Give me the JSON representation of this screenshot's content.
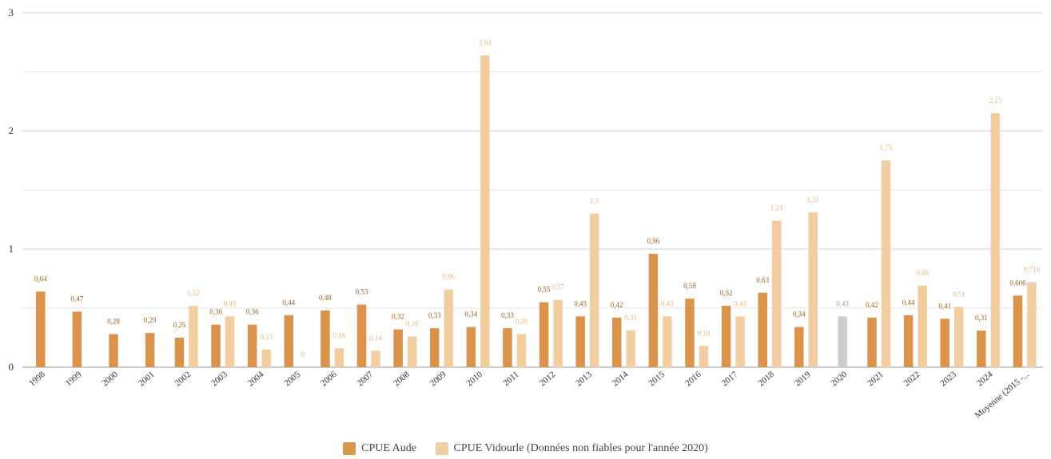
{
  "chart_data": {
    "type": "bar",
    "categories": [
      "1998",
      "1999",
      "2000",
      "2001",
      "2002",
      "2003",
      "2004",
      "2005",
      "2006",
      "2007",
      "2008",
      "2009",
      "2010",
      "2011",
      "2012",
      "2013",
      "2014",
      "2015",
      "2016",
      "2017",
      "2018",
      "2019",
      "2020",
      "2021",
      "2022",
      "2023",
      "2024",
      "Moyenne (2015 -..."
    ],
    "series": [
      {
        "name": "CPUE Aude",
        "color": "#d9934a",
        "values": [
          0.64,
          0.47,
          0.28,
          0.29,
          0.25,
          0.36,
          0.36,
          0.44,
          0.48,
          0.53,
          0.32,
          0.33,
          0.34,
          0.33,
          0.55,
          0.43,
          0.42,
          0.96,
          0.58,
          0.52,
          0.63,
          0.34,
          null,
          0.42,
          0.44,
          0.41,
          0.31,
          0.606
        ],
        "labels": [
          "0,64",
          "0,47",
          "0,28",
          "0,29",
          "0,25",
          "0,36",
          "0,36",
          "0,44",
          "0,48",
          "0,53",
          "0,32",
          "0,33",
          "0,34",
          "0,33",
          "0,55",
          "0,43",
          "0,42",
          "0,96",
          "0,58",
          "0,52",
          "0,63",
          "0,34",
          "",
          "0,42",
          "0,44",
          "0,41",
          "0,31",
          "0,606"
        ]
      },
      {
        "name": "CPUE Vidourle (Données non fiables pour l'année 2020)",
        "color": "#f2cda0",
        "unreliable_color": "#cccccc",
        "unreliable_category": "2020",
        "values": [
          null,
          null,
          null,
          null,
          0.52,
          0.43,
          0.15,
          0,
          0.16,
          0.14,
          0.26,
          0.66,
          2.64,
          0.28,
          0.57,
          1.3,
          0.31,
          0.43,
          0.18,
          0.43,
          1.24,
          1.31,
          0.43,
          1.75,
          0.69,
          0.51,
          2.15,
          0.718
        ],
        "labels": [
          "",
          "",
          "",
          "",
          "0,52",
          "0,43",
          "0,15",
          "0",
          "0,16",
          "0,14",
          "0,26",
          "0,66",
          "2,64",
          "0,28",
          "0,57",
          "1,3",
          "0,31",
          "0,43",
          "0,18",
          "0,43",
          "1,24",
          "1,31",
          "0,43",
          "1,75",
          "0,69",
          "0,51",
          "2,15",
          "0,718"
        ]
      }
    ],
    "ylim": [
      0,
      3
    ],
    "y_ticks": [
      "0",
      "1",
      "2",
      "3"
    ],
    "grid": true,
    "legend_position": "bottom"
  }
}
